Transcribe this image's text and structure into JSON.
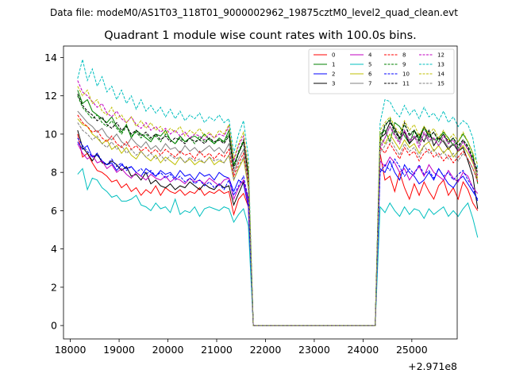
{
  "chart_data": {
    "type": "line",
    "suptitle": "Data file: modeM0/AS1T03_118T01_9000002962_19875cztM0_level2_quad_clean.evt",
    "title": "Quadrant 1 module wise count rates with 100.0s bins.",
    "xlabel": "",
    "ylabel": "",
    "x_offset_label": "+2.971e8",
    "xlim": [
      17860,
      25930
    ],
    "ylim": [
      -0.7,
      14.6
    ],
    "xticks": [
      18000,
      19000,
      20000,
      21000,
      22000,
      23000,
      24000,
      25000
    ],
    "xtick_labels": [
      "18000",
      "19000",
      "20000",
      "21000",
      "22000",
      "23000",
      "24000",
      "25000"
    ],
    "yticks": [
      0,
      2,
      4,
      6,
      8,
      10,
      12,
      14
    ],
    "ytick_labels": [
      "0",
      "2",
      "4",
      "6",
      "8",
      "10",
      "12",
      "14"
    ],
    "legend_loc": "upper right",
    "x_start": 18150,
    "x_step": 100,
    "gap_start": 21750,
    "gap_end": 24250,
    "x_end": 25550,
    "series": [
      {
        "name": "0",
        "color": "#ff0000",
        "dash": "solid",
        "seg1": [
          10.0,
          8.8,
          9.0,
          8.5,
          8.1,
          8.0,
          7.8,
          7.5,
          7.6,
          7.2,
          7.4,
          7.0,
          7.2,
          6.8,
          7.1,
          6.9,
          7.3,
          6.8,
          7.2,
          7.0,
          6.9,
          7.1,
          6.8,
          7.0,
          6.9,
          7.2,
          6.8,
          7.0,
          6.9,
          7.1,
          6.9,
          7.0,
          5.8,
          6.6,
          6.9,
          6.2
        ],
        "seg2": [
          9.0,
          7.6,
          7.8,
          7.0,
          8.0,
          7.2,
          6.6,
          7.4,
          6.8,
          7.5,
          7.0,
          6.6,
          7.3,
          7.6,
          6.8,
          7.2,
          6.6,
          7.5,
          7.1,
          6.4,
          6.0
        ],
        "end": 0.0
      },
      {
        "name": "1",
        "color": "#008000",
        "dash": "solid",
        "seg1": [
          12.3,
          11.6,
          11.8,
          11.2,
          11.0,
          10.8,
          10.6,
          10.9,
          10.4,
          10.1,
          10.5,
          9.8,
          10.2,
          10.0,
          9.8,
          9.6,
          10.0,
          9.9,
          10.2,
          9.7,
          9.5,
          9.9,
          9.6,
          9.8,
          9.9,
          9.7,
          10.0,
          9.7,
          9.5,
          9.8,
          9.6,
          10.2,
          8.4,
          9.0,
          9.6,
          8.0
        ],
        "seg2": [
          10.0,
          10.2,
          9.6,
          10.6,
          10.4,
          9.9,
          9.5,
          10.2,
          9.8,
          10.4,
          10.0,
          9.7,
          9.8,
          10.1,
          9.8,
          9.4,
          9.6,
          10.0,
          9.6,
          9.0,
          7.4
        ],
        "end": 0.0
      },
      {
        "name": "2",
        "color": "#0000ff",
        "dash": "solid",
        "seg1": [
          9.6,
          9.2,
          9.4,
          8.8,
          8.9,
          8.6,
          8.4,
          8.5,
          8.1,
          8.4,
          8.2,
          8.3,
          8.0,
          7.8,
          8.2,
          8.0,
          7.8,
          8.1,
          7.9,
          8.0,
          7.7,
          8.1,
          7.8,
          7.9,
          7.6,
          8.0,
          7.8,
          7.9,
          7.6,
          8.0,
          7.8,
          7.7,
          7.0,
          7.6,
          7.4,
          6.2
        ],
        "seg2": [
          8.2,
          8.0,
          8.6,
          8.0,
          7.6,
          8.4,
          8.0,
          7.8,
          7.4,
          7.6,
          8.0,
          7.6,
          8.2,
          7.8,
          7.4,
          7.2,
          7.6,
          7.8,
          7.4,
          7.0,
          6.6
        ],
        "end": 0.0
      },
      {
        "name": "3",
        "color": "#000000",
        "dash": "solid",
        "seg1": [
          10.2,
          9.3,
          9.0,
          8.6,
          9.0,
          8.5,
          8.4,
          8.6,
          8.4,
          8.1,
          8.3,
          7.8,
          7.9,
          7.6,
          8.0,
          7.4,
          7.6,
          7.3,
          7.2,
          7.4,
          7.1,
          7.3,
          7.2,
          7.5,
          7.3,
          7.1,
          7.4,
          7.2,
          7.1,
          7.4,
          7.2,
          7.3,
          6.3,
          6.9,
          7.5,
          6.6
        ],
        "seg2": [
          9.8,
          10.0,
          10.6,
          10.3,
          9.8,
          10.1,
          9.5,
          9.8,
          10.0,
          9.6,
          10.2,
          9.4,
          9.8,
          9.6,
          9.2,
          9.5,
          9.1,
          9.3,
          8.6,
          7.8,
          6.1
        ],
        "end": 0.0
      },
      {
        "name": "4",
        "color": "#c000c0",
        "dash": "solid",
        "seg1": [
          9.5,
          9.0,
          8.7,
          8.9,
          8.5,
          8.6,
          8.2,
          8.4,
          8.0,
          8.2,
          7.9,
          7.7,
          8.0,
          7.8,
          7.6,
          7.9,
          7.7,
          7.6,
          7.8,
          7.5,
          7.7,
          7.6,
          7.4,
          7.7,
          7.5,
          7.6,
          7.4,
          7.7,
          7.5,
          7.3,
          7.6,
          7.7,
          6.6,
          7.2,
          7.6,
          6.4
        ],
        "seg2": [
          8.6,
          8.3,
          8.8,
          8.5,
          8.0,
          8.2,
          7.6,
          8.0,
          8.3,
          7.8,
          8.4,
          8.0,
          7.8,
          7.6,
          8.1,
          7.7,
          7.5,
          8.0,
          7.8,
          7.2,
          6.9
        ],
        "end": 0.0
      },
      {
        "name": "5",
        "color": "#00bfbf",
        "dash": "solid",
        "seg1": [
          7.9,
          8.2,
          7.1,
          7.7,
          7.6,
          7.2,
          7.0,
          6.7,
          6.8,
          6.5,
          6.5,
          6.6,
          6.8,
          6.3,
          6.2,
          6.0,
          6.4,
          6.1,
          6.2,
          5.9,
          6.6,
          5.8,
          6.0,
          5.9,
          6.2,
          5.7,
          6.1,
          6.2,
          6.1,
          6.0,
          6.2,
          6.1,
          5.4,
          5.8,
          6.1,
          5.2
        ],
        "seg2": [
          6.2,
          5.9,
          6.4,
          6.0,
          5.7,
          6.2,
          5.8,
          6.1,
          6.0,
          5.6,
          6.1,
          5.8,
          6.0,
          6.2,
          5.7,
          6.0,
          5.7,
          6.1,
          6.4,
          5.6,
          4.6
        ],
        "end": 0.0
      },
      {
        "name": "6",
        "color": "#bfbf00",
        "dash": "solid",
        "seg1": [
          10.8,
          10.5,
          10.4,
          10.0,
          9.8,
          9.5,
          9.7,
          9.2,
          9.4,
          9.0,
          9.3,
          8.9,
          8.7,
          9.1,
          8.8,
          8.6,
          8.9,
          8.5,
          8.8,
          8.6,
          8.4,
          8.8,
          8.5,
          8.7,
          8.4,
          8.6,
          8.5,
          8.8,
          8.4,
          8.6,
          8.5,
          8.9,
          7.6,
          8.2,
          8.7,
          7.2
        ],
        "seg2": [
          9.8,
          9.5,
          10.0,
          9.6,
          9.2,
          9.7,
          9.3,
          9.5,
          9.0,
          9.4,
          9.6,
          9.1,
          9.4,
          9.0,
          9.3,
          8.8,
          9.1,
          9.4,
          9.0,
          8.5,
          7.7
        ],
        "end": 0.0
      },
      {
        "name": "7",
        "color": "#808080",
        "dash": "solid",
        "seg1": [
          11.2,
          10.9,
          10.6,
          10.4,
          10.1,
          10.3,
          9.9,
          9.7,
          10.0,
          9.6,
          9.4,
          9.8,
          9.5,
          9.3,
          9.6,
          9.2,
          9.4,
          9.1,
          9.5,
          9.2,
          9.3,
          9.0,
          9.4,
          9.1,
          9.3,
          9.0,
          9.2,
          9.4,
          9.1,
          9.3,
          9.0,
          9.5,
          8.0,
          8.7,
          9.2,
          7.6
        ],
        "seg2": [
          9.4,
          9.8,
          10.4,
          10.0,
          9.6,
          10.2,
          9.7,
          9.9,
          9.5,
          10.0,
          9.6,
          9.8,
          9.4,
          9.7,
          9.3,
          9.5,
          9.2,
          9.6,
          9.2,
          8.6,
          8.0
        ],
        "end": 0.0
      },
      {
        "name": "8",
        "color": "#ff0000",
        "dash": "dashed",
        "seg1": [
          11.0,
          10.6,
          10.4,
          10.1,
          10.2,
          9.8,
          9.6,
          9.9,
          9.5,
          9.3,
          9.6,
          9.2,
          9.4,
          9.1,
          9.3,
          9.0,
          9.2,
          8.9,
          9.2,
          9.0,
          8.8,
          9.1,
          8.9,
          9.0,
          8.7,
          9.1,
          8.8,
          9.0,
          8.7,
          9.0,
          8.8,
          9.2,
          7.8,
          8.5,
          9.0,
          7.4
        ],
        "seg2": [
          9.3,
          9.0,
          9.5,
          9.1,
          8.7,
          9.3,
          8.9,
          9.1,
          8.6,
          9.0,
          9.2,
          8.8,
          9.0,
          8.6,
          8.9,
          8.5,
          8.8,
          9.1,
          8.7,
          8.2,
          7.5
        ],
        "end": 0.0
      },
      {
        "name": "9",
        "color": "#008000",
        "dash": "dashed",
        "seg1": [
          12.0,
          11.4,
          11.1,
          10.8,
          11.0,
          10.6,
          10.4,
          10.7,
          10.3,
          10.0,
          10.4,
          9.9,
          10.1,
          9.8,
          10.0,
          9.7,
          9.9,
          9.6,
          10.0,
          9.7,
          9.5,
          9.8,
          9.6,
          9.8,
          9.5,
          9.9,
          9.6,
          9.8,
          9.5,
          9.7,
          9.6,
          10.0,
          8.3,
          9.1,
          9.7,
          7.9
        ],
        "seg2": [
          9.6,
          10.4,
          10.8,
          10.2,
          9.7,
          10.5,
          10.0,
          10.2,
          9.7,
          10.3,
          9.9,
          10.1,
          9.6,
          10.0,
          9.5,
          9.8,
          9.3,
          9.7,
          9.4,
          8.8,
          7.9
        ],
        "end": 0.0
      },
      {
        "name": "10",
        "color": "#0000ff",
        "dash": "dashed",
        "seg1": [
          9.8,
          9.4,
          9.1,
          8.8,
          9.0,
          8.6,
          8.4,
          8.7,
          8.3,
          8.5,
          8.1,
          8.3,
          8.0,
          8.2,
          7.9,
          8.1,
          7.8,
          8.0,
          7.7,
          7.9,
          7.6,
          7.8,
          7.5,
          7.7,
          7.4,
          7.6,
          7.3,
          7.5,
          7.2,
          7.4,
          7.1,
          7.6,
          6.8,
          7.3,
          7.8,
          6.6
        ],
        "seg2": [
          8.0,
          8.4,
          8.1,
          8.7,
          8.3,
          7.8,
          8.2,
          7.9,
          8.4,
          7.9,
          8.1,
          7.7,
          8.2,
          7.8,
          8.0,
          7.6,
          7.9,
          8.1,
          7.6,
          7.2,
          6.5
        ],
        "end": 0.0
      },
      {
        "name": "11",
        "color": "#000000",
        "dash": "dashed",
        "seg1": [
          12.1,
          11.5,
          11.2,
          11.0,
          10.7,
          10.9,
          10.5,
          10.3,
          10.6,
          10.2,
          10.4,
          10.0,
          10.2,
          9.9,
          10.1,
          9.8,
          10.0,
          9.7,
          9.9,
          9.6,
          9.8,
          9.7,
          9.5,
          9.8,
          9.6,
          9.7,
          9.5,
          9.8,
          9.6,
          9.7,
          9.5,
          9.9,
          8.2,
          9.0,
          9.6,
          7.8
        ],
        "seg2": [
          9.7,
          10.5,
          10.7,
          10.1,
          9.8,
          10.6,
          9.9,
          10.2,
          9.6,
          10.4,
          9.8,
          10.1,
          9.7,
          10.0,
          9.6,
          9.8,
          9.4,
          9.7,
          9.3,
          8.7,
          8.1
        ],
        "end": 0.0
      },
      {
        "name": "12",
        "color": "#c000c0",
        "dash": "dashed",
        "seg1": [
          12.8,
          12.2,
          12.0,
          11.7,
          11.4,
          11.6,
          11.1,
          10.9,
          11.2,
          10.8,
          10.6,
          10.9,
          10.5,
          10.3,
          10.6,
          10.2,
          10.4,
          10.1,
          10.3,
          10.0,
          10.2,
          9.9,
          10.1,
          9.8,
          10.0,
          9.9,
          9.7,
          10.0,
          9.8,
          10.0,
          9.9,
          10.4,
          8.6,
          9.4,
          9.9,
          8.2
        ],
        "seg2": [
          9.2,
          9.8,
          10.4,
          9.9,
          9.5,
          10.2,
          9.6,
          9.9,
          9.3,
          10.1,
          9.7,
          9.8,
          9.4,
          9.9,
          9.5,
          9.7,
          9.1,
          9.6,
          9.2,
          8.6,
          7.8
        ],
        "end": 0.0
      },
      {
        "name": "13",
        "color": "#00bfbf",
        "dash": "dashed",
        "seg1": [
          12.9,
          13.9,
          12.8,
          13.4,
          12.5,
          13.0,
          12.2,
          12.5,
          11.8,
          12.3,
          11.6,
          12.0,
          11.3,
          11.8,
          11.2,
          11.5,
          11.1,
          11.4,
          10.9,
          11.3,
          10.8,
          11.2,
          10.7,
          11.0,
          10.8,
          11.1,
          10.6,
          10.9,
          10.7,
          11.0,
          10.6,
          10.8,
          9.0,
          10.0,
          10.7,
          8.8
        ],
        "seg2": [
          10.6,
          11.8,
          11.7,
          11.2,
          10.9,
          11.5,
          11.0,
          11.3,
          10.8,
          11.4,
          10.9,
          11.1,
          10.7,
          11.2,
          10.6,
          10.9,
          10.4,
          10.7,
          10.5,
          9.8,
          8.2
        ],
        "end": 0.0
      },
      {
        "name": "14",
        "color": "#bfbf00",
        "dash": "dashed",
        "seg1": [
          12.5,
          12.0,
          12.3,
          11.6,
          11.8,
          11.2,
          11.0,
          11.4,
          10.8,
          11.0,
          10.6,
          10.9,
          10.4,
          10.7,
          10.3,
          10.6,
          10.2,
          10.4,
          10.0,
          10.3,
          10.1,
          10.4,
          9.9,
          10.2,
          10.0,
          10.3,
          9.9,
          10.1,
          9.8,
          10.2,
          10.0,
          10.5,
          8.7,
          9.5,
          10.1,
          8.3
        ],
        "seg2": [
          10.2,
          10.6,
          10.9,
          10.4,
          10.0,
          10.7,
          10.2,
          10.5,
          9.9,
          10.4,
          10.0,
          10.3,
          9.8,
          10.2,
          9.7,
          10.0,
          9.6,
          10.1,
          9.6,
          9.0,
          8.4
        ],
        "end": 0.0
      },
      {
        "name": "15",
        "color": "#808080",
        "dash": "dashed",
        "seg1": [
          10.6,
          10.2,
          10.0,
          9.7,
          9.9,
          9.5,
          9.3,
          9.6,
          9.2,
          9.4,
          9.0,
          9.2,
          8.9,
          9.1,
          8.8,
          9.0,
          8.7,
          8.9,
          8.6,
          8.9,
          8.7,
          8.8,
          8.5,
          8.8,
          8.6,
          8.7,
          8.5,
          8.8,
          8.6,
          8.7,
          8.5,
          8.9,
          7.6,
          8.3,
          8.8,
          7.3
        ],
        "seg2": [
          9.0,
          9.4,
          9.8,
          9.3,
          8.9,
          9.5,
          9.1,
          9.3,
          8.8,
          9.4,
          9.0,
          9.2,
          8.8,
          9.1,
          8.7,
          9.0,
          8.6,
          9.0,
          8.7,
          8.2,
          7.6
        ],
        "end": 0.0
      }
    ]
  }
}
